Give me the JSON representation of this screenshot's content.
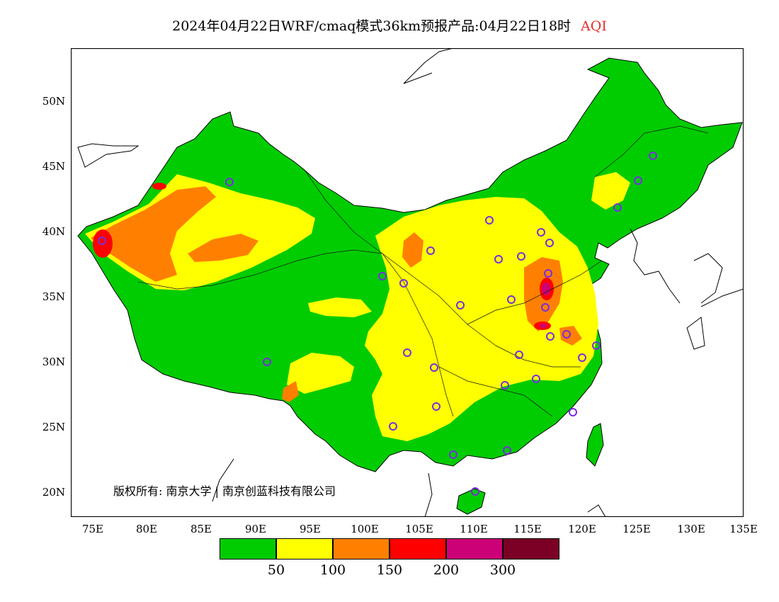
{
  "title": {
    "main": "2024年04月22日WRF/cmaq模式36km预报产品:04月22日18时",
    "variable": "AQI"
  },
  "map": {
    "lat_labels": [
      "50N",
      "45N",
      "40N",
      "35N",
      "30N",
      "25N",
      "20N"
    ],
    "lon_labels": [
      "75E",
      "80E",
      "85E",
      "90E",
      "95E",
      "100E",
      "105E",
      "110E",
      "115E",
      "120E",
      "125E",
      "130E",
      "135E"
    ],
    "copyright": "版权所有: 南京大学 | 南京创蓝科技有限公司",
    "colors": {
      "ocean": "#ffffff",
      "level_good": "#00cc00",
      "level_moderate": "#ffff00",
      "level_usg": "#ff8000",
      "level_unhealthy": "#ff0000",
      "level_very_unhealthy": "#cc0077",
      "level_hazardous": "#7a0026",
      "station_marker": "#7b2ce0"
    }
  },
  "legend": {
    "colors": [
      "#00cc00",
      "#ffff00",
      "#ff8000",
      "#ff0000",
      "#cc0077",
      "#7a0026"
    ],
    "labels": [
      "50",
      "100",
      "150",
      "200",
      "300"
    ]
  }
}
